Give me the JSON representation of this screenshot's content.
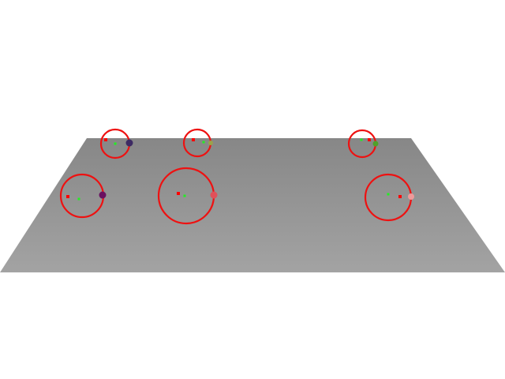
{
  "scene": {
    "background_color": "#ffffff",
    "plane": {
      "color_far": "#878787",
      "color_near": "#a3a3a3"
    },
    "ring_color": "#ee1111",
    "marker_red_color": "#ff0000",
    "marker_green_color": "#22ee22",
    "targets": [
      {
        "id": "target-1",
        "ball_color": "#3d2a63"
      },
      {
        "id": "target-2",
        "ball_color": "#9aa24a"
      },
      {
        "id": "target-3",
        "ball_color": "#4fa12a"
      },
      {
        "id": "target-4",
        "ball_color": "#6a1060"
      },
      {
        "id": "target-5",
        "ball_color": "#e0505a"
      },
      {
        "id": "target-6",
        "ball_color": "#ee9a9a"
      }
    ]
  }
}
